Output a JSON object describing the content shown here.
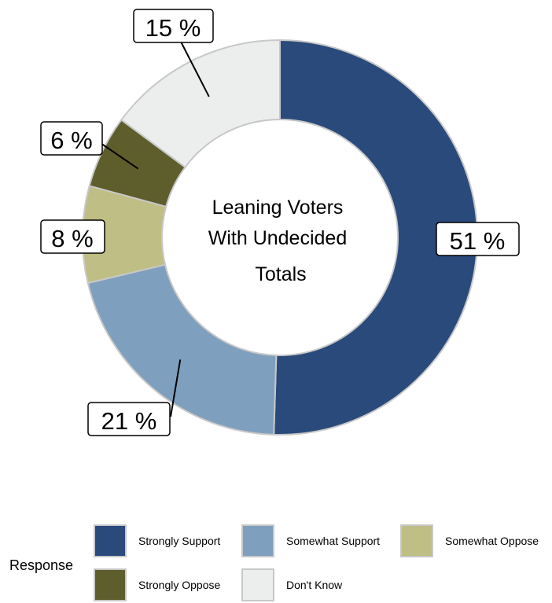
{
  "chart_data": {
    "type": "pie",
    "variant": "donut",
    "center_text": [
      "Leaning Voters",
      "With Undecided",
      "Totals"
    ],
    "categories": [
      "Strongly Support",
      "Somewhat Support",
      "Somewhat Oppose",
      "Strongly Oppose",
      "Don't Know"
    ],
    "values": [
      51,
      21,
      8,
      6,
      15
    ],
    "labels": [
      "51 %",
      "21 %",
      "8 %",
      "6 %",
      "15 %"
    ],
    "colors": [
      "#2a4a7c",
      "#7f9fbe",
      "#bfbe84",
      "#5e5d2c",
      "#eceeee"
    ],
    "start": "12 o'clock",
    "direction": "clockwise",
    "legend": {
      "title": "Response",
      "placement": "bottom"
    }
  }
}
